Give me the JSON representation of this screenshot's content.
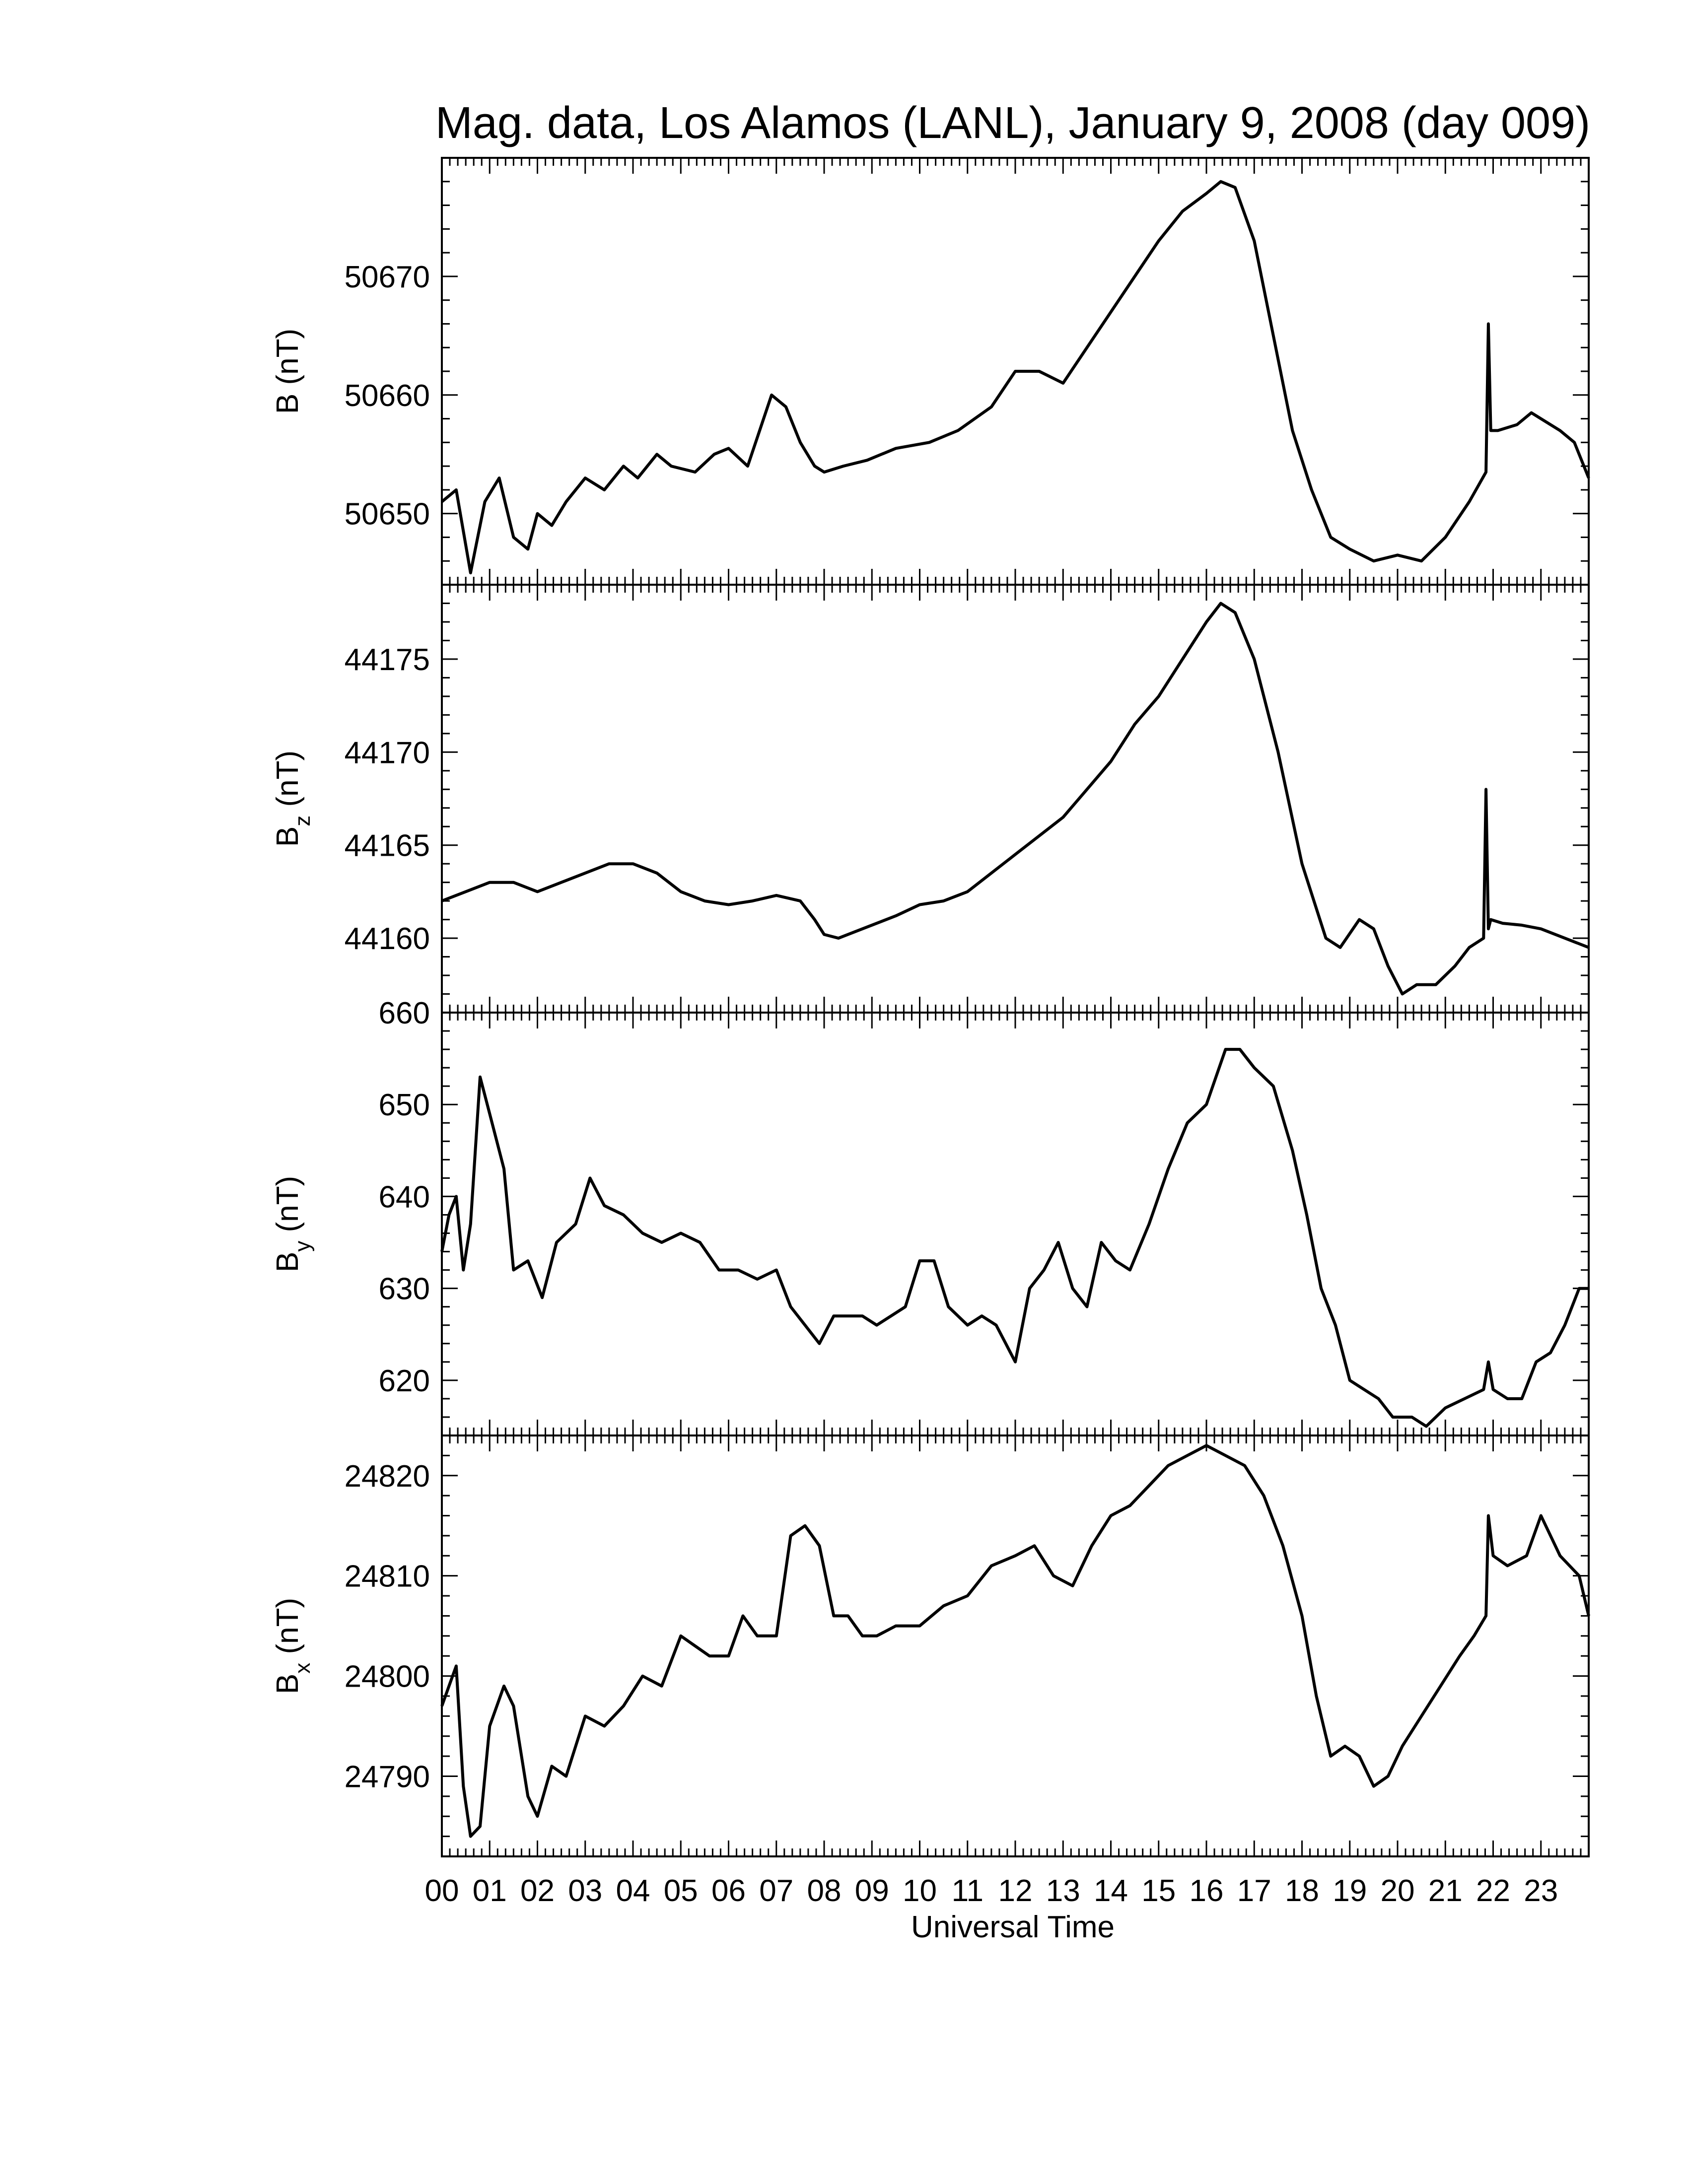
{
  "title": "Mag. data, Los Alamos (LANL), January 9, 2008 (day 009)",
  "xlabel": "Universal Time",
  "xticks": [
    "00",
    "01",
    "02",
    "03",
    "04",
    "05",
    "06",
    "07",
    "08",
    "09",
    "10",
    "11",
    "12",
    "13",
    "14",
    "15",
    "16",
    "17",
    "18",
    "19",
    "20",
    "21",
    "22",
    "23"
  ],
  "panels": [
    {
      "id": "B",
      "ylabel_main": "B",
      "ylabel_sub": "",
      "ylabel_unit": " (nT)"
    },
    {
      "id": "Bz",
      "ylabel_main": "B",
      "ylabel_sub": "z",
      "ylabel_unit": " (nT)"
    },
    {
      "id": "By",
      "ylabel_main": "B",
      "ylabel_sub": "y",
      "ylabel_unit": " (nT)"
    },
    {
      "id": "Bx",
      "ylabel_main": "B",
      "ylabel_sub": "x",
      "ylabel_unit": " (nT)"
    }
  ],
  "colors": {
    "line": "#000000",
    "background": "#ffffff"
  },
  "chart_data": [
    {
      "type": "line",
      "panel": "B",
      "ylabel": "B (nT)",
      "xlabel": "Universal Time",
      "xlim": [
        0,
        24
      ],
      "ylim": [
        50644,
        50680
      ],
      "yticks": [
        50650,
        50660,
        50670
      ],
      "x": [
        0,
        0.3,
        0.6,
        0.9,
        1.2,
        1.5,
        1.8,
        2.0,
        2.3,
        2.6,
        3.0,
        3.4,
        3.8,
        4.1,
        4.5,
        4.8,
        5.3,
        5.7,
        6.0,
        6.4,
        6.9,
        7.2,
        7.5,
        7.8,
        8.0,
        8.4,
        8.9,
        9.5,
        10.2,
        10.8,
        11.5,
        12.0,
        12.5,
        13.0,
        13.5,
        14.0,
        14.5,
        15.0,
        15.5,
        16.0,
        16.3,
        16.6,
        17.0,
        17.4,
        17.8,
        18.2,
        18.6,
        19.0,
        19.5,
        20.0,
        20.5,
        21.0,
        21.5,
        21.85,
        21.9,
        21.95,
        22.1,
        22.5,
        22.8,
        23.0,
        23.4,
        23.7,
        24.0
      ],
      "y": [
        50651,
        50652,
        50645,
        50651,
        50653,
        50648,
        50647,
        50650,
        50649,
        50651,
        50653,
        50652,
        50654,
        50653,
        50655,
        50654,
        50653.5,
        50655,
        50655.5,
        50654,
        50660,
        50659,
        50656,
        50654,
        50653.5,
        50654,
        50654.5,
        50655.5,
        50656,
        50657,
        50659,
        50662,
        50662,
        50661,
        50664,
        50667,
        50670,
        50673,
        50675.5,
        50677,
        50678,
        50677.5,
        50673,
        50665,
        50657,
        50652,
        50648,
        50647,
        50646,
        50646.5,
        50646,
        50648,
        50651,
        50653.5,
        50666,
        50657,
        50657,
        50657.5,
        50658.5,
        50658,
        50657,
        50656,
        50653
      ]
    },
    {
      "type": "line",
      "panel": "Bz",
      "ylabel": "Bz (nT)",
      "xlabel": "Universal Time",
      "xlim": [
        0,
        24
      ],
      "ylim": [
        44156,
        44179
      ],
      "yticks": [
        44160,
        44165,
        44170,
        44175
      ],
      "x": [
        0,
        0.5,
        1.0,
        1.5,
        2.0,
        2.5,
        3.0,
        3.5,
        4.0,
        4.5,
        5.0,
        5.5,
        6.0,
        6.5,
        7.0,
        7.5,
        7.8,
        8.0,
        8.3,
        8.8,
        9.5,
        10.0,
        10.5,
        11.0,
        11.5,
        12.0,
        12.5,
        13.0,
        13.5,
        14.0,
        14.5,
        15.0,
        15.5,
        16.0,
        16.3,
        16.6,
        17.0,
        17.5,
        18.0,
        18.5,
        18.8,
        19.2,
        19.5,
        19.8,
        20.1,
        20.4,
        20.8,
        21.2,
        21.5,
        21.8,
        21.85,
        21.9,
        21.95,
        22.2,
        22.6,
        23.0,
        23.5,
        24.0
      ],
      "y": [
        44162,
        44162.5,
        44163,
        44163,
        44162.5,
        44163,
        44163.5,
        44164,
        44164,
        44163.5,
        44162.5,
        44162,
        44161.8,
        44162,
        44162.3,
        44162,
        44161,
        44160.2,
        44160,
        44160.5,
        44161.2,
        44161.8,
        44162,
        44162.5,
        44163.5,
        44164.5,
        44165.5,
        44166.5,
        44168,
        44169.5,
        44171.5,
        44173,
        44175,
        44177,
        44178,
        44177.5,
        44175,
        44170,
        44164,
        44160,
        44159.5,
        44161,
        44160.5,
        44158.5,
        44157,
        44157.5,
        44157.5,
        44158.5,
        44159.5,
        44160,
        44168,
        44160.5,
        44161,
        44160.8,
        44160.7,
        44160.5,
        44160,
        44159.5
      ]
    },
    {
      "type": "line",
      "panel": "By",
      "ylabel": "By (nT)",
      "xlabel": "Universal Time",
      "xlim": [
        0,
        24
      ],
      "ylim": [
        614,
        660
      ],
      "yticks": [
        620,
        630,
        640,
        650,
        660
      ],
      "x": [
        0,
        0.15,
        0.3,
        0.45,
        0.6,
        0.8,
        1.0,
        1.3,
        1.5,
        1.8,
        2.1,
        2.4,
        2.8,
        3.1,
        3.4,
        3.8,
        4.2,
        4.6,
        5.0,
        5.4,
        5.8,
        6.2,
        6.6,
        7.0,
        7.3,
        7.6,
        7.9,
        8.2,
        8.5,
        8.8,
        9.1,
        9.4,
        9.7,
        10.0,
        10.3,
        10.6,
        11.0,
        11.3,
        11.6,
        11.8,
        12.0,
        12.3,
        12.6,
        12.9,
        13.2,
        13.5,
        13.8,
        14.1,
        14.4,
        14.8,
        15.2,
        15.6,
        16.0,
        16.4,
        16.7,
        17.0,
        17.4,
        17.8,
        18.1,
        18.4,
        18.7,
        19.0,
        19.3,
        19.6,
        19.9,
        20.3,
        20.6,
        21.0,
        21.4,
        21.8,
        21.9,
        22.0,
        22.3,
        22.6,
        22.9,
        23.2,
        23.5,
        23.8,
        24.0
      ],
      "y": [
        634,
        638,
        640,
        632,
        637,
        653,
        649,
        643,
        632,
        633,
        629,
        635,
        637,
        642,
        639,
        638,
        636,
        635,
        636,
        635,
        632,
        632,
        631,
        632,
        628,
        626,
        624,
        627,
        627,
        627,
        626,
        627,
        628,
        633,
        633,
        628,
        626,
        627,
        626,
        624,
        622,
        630,
        632,
        635,
        630,
        628,
        635,
        633,
        632,
        637,
        643,
        648,
        650,
        656,
        656,
        654,
        652,
        645,
        638,
        630,
        626,
        620,
        619,
        618,
        616,
        616,
        615,
        617,
        618,
        619,
        622,
        619,
        618,
        618,
        622,
        623,
        626,
        630,
        630
      ]
    },
    {
      "type": "line",
      "panel": "Bx",
      "ylabel": "Bx (nT)",
      "xlabel": "Universal Time",
      "xlim": [
        0,
        24
      ],
      "ylim": [
        24782,
        24824
      ],
      "yticks": [
        24790,
        24800,
        24810,
        24820
      ],
      "x": [
        0,
        0.15,
        0.3,
        0.45,
        0.6,
        0.8,
        1.0,
        1.3,
        1.5,
        1.8,
        2.0,
        2.3,
        2.6,
        3.0,
        3.4,
        3.8,
        4.2,
        4.6,
        5.0,
        5.3,
        5.6,
        6.0,
        6.3,
        6.6,
        7.0,
        7.3,
        7.6,
        7.9,
        8.2,
        8.5,
        8.8,
        9.1,
        9.5,
        10.0,
        10.5,
        11.0,
        11.5,
        12.0,
        12.4,
        12.8,
        13.2,
        13.6,
        14.0,
        14.4,
        14.8,
        15.2,
        15.6,
        16.0,
        16.4,
        16.8,
        17.2,
        17.6,
        18.0,
        18.3,
        18.6,
        18.9,
        19.2,
        19.5,
        19.8,
        20.1,
        20.5,
        20.9,
        21.3,
        21.6,
        21.85,
        21.9,
        22.0,
        22.3,
        22.7,
        23.0,
        23.4,
        23.8,
        24.0
      ],
      "y": [
        24797,
        24799,
        24801,
        24789,
        24784,
        24785,
        24795,
        24799,
        24797,
        24788,
        24786,
        24791,
        24790,
        24796,
        24795,
        24797,
        24800,
        24799,
        24804,
        24803,
        24802,
        24802,
        24806,
        24804,
        24804,
        24814,
        24815,
        24813,
        24806,
        24806,
        24804,
        24804,
        24805,
        24805,
        24807,
        24808,
        24811,
        24812,
        24813,
        24810,
        24809,
        24813,
        24816,
        24817,
        24819,
        24821,
        24822,
        24823,
        24822,
        24821,
        24818,
        24813,
        24806,
        24798,
        24792,
        24793,
        24792,
        24789,
        24790,
        24793,
        24796,
        24799,
        24802,
        24804,
        24806,
        24816,
        24812,
        24811,
        24812,
        24816,
        24812,
        24810,
        24806
      ]
    }
  ]
}
